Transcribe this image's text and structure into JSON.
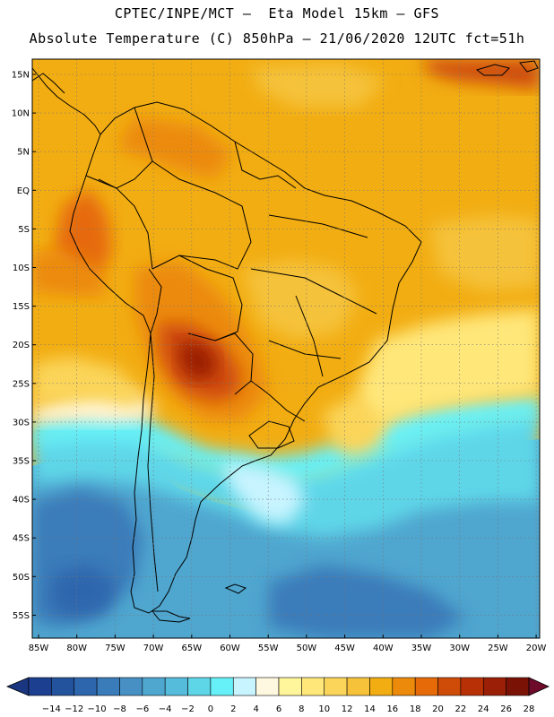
{
  "header": {
    "line1": "CPTEC/INPE/MCT –  Eta Model 15km – GFS",
    "line2": "Absolute Temperature (C) 850hPa – 21/06/2020 12UTC fct=51h"
  },
  "map": {
    "lat_labels": [
      "15N",
      "10N",
      "5N",
      "EQ",
      "5S",
      "10S",
      "15S",
      "20S",
      "25S",
      "30S",
      "35S",
      "40S",
      "45S",
      "50S",
      "55S"
    ],
    "lon_labels": [
      "85W",
      "80W",
      "75W",
      "70W",
      "65W",
      "60W",
      "55W",
      "50W",
      "45W",
      "40W",
      "35W",
      "30W",
      "25W",
      "20W"
    ]
  },
  "legend": {
    "labels": [
      "-14",
      "-12",
      "-10",
      "-8",
      "-6",
      "-4",
      "-2",
      "0",
      "2",
      "4",
      "6",
      "8",
      "10",
      "12",
      "14",
      "16",
      "18",
      "20",
      "22",
      "24",
      "26",
      "28"
    ],
    "colors": [
      "#1c3f8f",
      "#24539e",
      "#2e66ad",
      "#3a7bba",
      "#4690c4",
      "#4fa6cf",
      "#56bcdc",
      "#5ed6e8",
      "#66f0f8",
      "#c8f4ff",
      "#fff8e0",
      "#fff59a",
      "#ffe77a",
      "#fbd55a",
      "#f5c23a",
      "#f2ad12",
      "#ec8a0c",
      "#e66a08",
      "#cf4c08",
      "#b83106",
      "#9a1f06",
      "#7a1206"
    ],
    "colors_note": "fill colors of the scale bar"
  }
}
